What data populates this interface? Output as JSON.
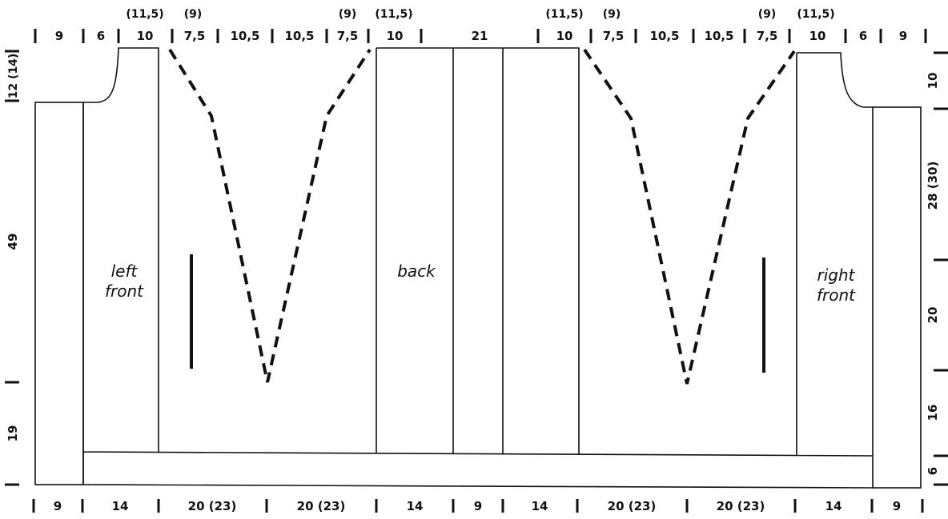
{
  "top_dims": {
    "main": [
      "9",
      "6",
      "10",
      "7,5",
      "10,5",
      "10,5",
      "7,5",
      "10",
      "21",
      "10",
      "7,5",
      "10,5",
      "10,5",
      "7,5",
      "10",
      "6",
      "9"
    ],
    "alt_top": [
      "(11,5)",
      "(9)",
      "(9)",
      "(11,5)",
      "(11,5)",
      "(9)",
      "(9)",
      "(11,5)"
    ]
  },
  "bottom_dims": [
    "9",
    "14",
    "20 (23)",
    "20 (23)",
    "14",
    "9",
    "14",
    "20 (23)",
    "20 (23)",
    "14",
    "9"
  ],
  "left_dims": [
    "12 (14)",
    "49",
    "19"
  ],
  "right_dims": [
    "10",
    "28 (30)",
    "20",
    "16",
    "6"
  ],
  "pieces": {
    "left_front": [
      "left",
      "front"
    ],
    "back": [
      "back"
    ],
    "right_front": [
      "right",
      "front"
    ]
  }
}
